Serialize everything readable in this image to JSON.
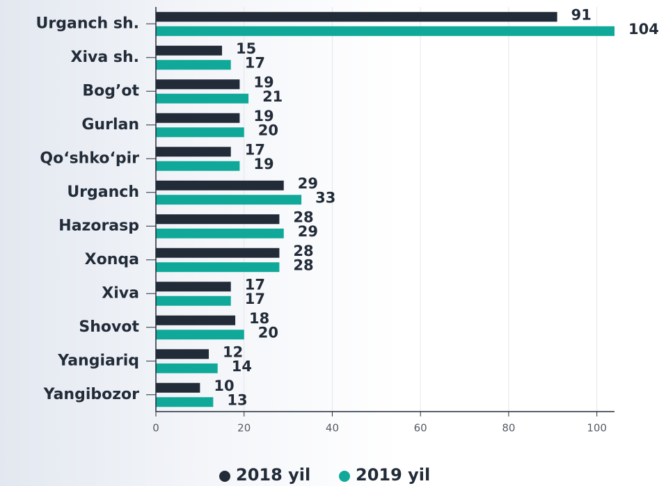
{
  "chart_data": {
    "type": "barh",
    "categories": [
      "Urganch sh.",
      "Xiva sh.",
      "Bog’ot",
      "Gurlan",
      "Qo‘shko‘pir",
      "Urganch",
      "Hazorasp",
      "Xonqa",
      "Xiva",
      "Shovot",
      "Yangiariq",
      "Yangibozor"
    ],
    "series": [
      {
        "name": "2018 yil",
        "color": "#222b38",
        "values": [
          91,
          15,
          19,
          19,
          17,
          29,
          28,
          28,
          17,
          18,
          12,
          10
        ]
      },
      {
        "name": "2019 yil",
        "color": "#10a999",
        "values": [
          104,
          17,
          21,
          20,
          19,
          33,
          29,
          28,
          17,
          20,
          14,
          13
        ]
      }
    ],
    "xlim": [
      0,
      104
    ],
    "xticks": [
      0,
      20,
      40,
      60,
      80,
      100
    ],
    "grid": true
  }
}
